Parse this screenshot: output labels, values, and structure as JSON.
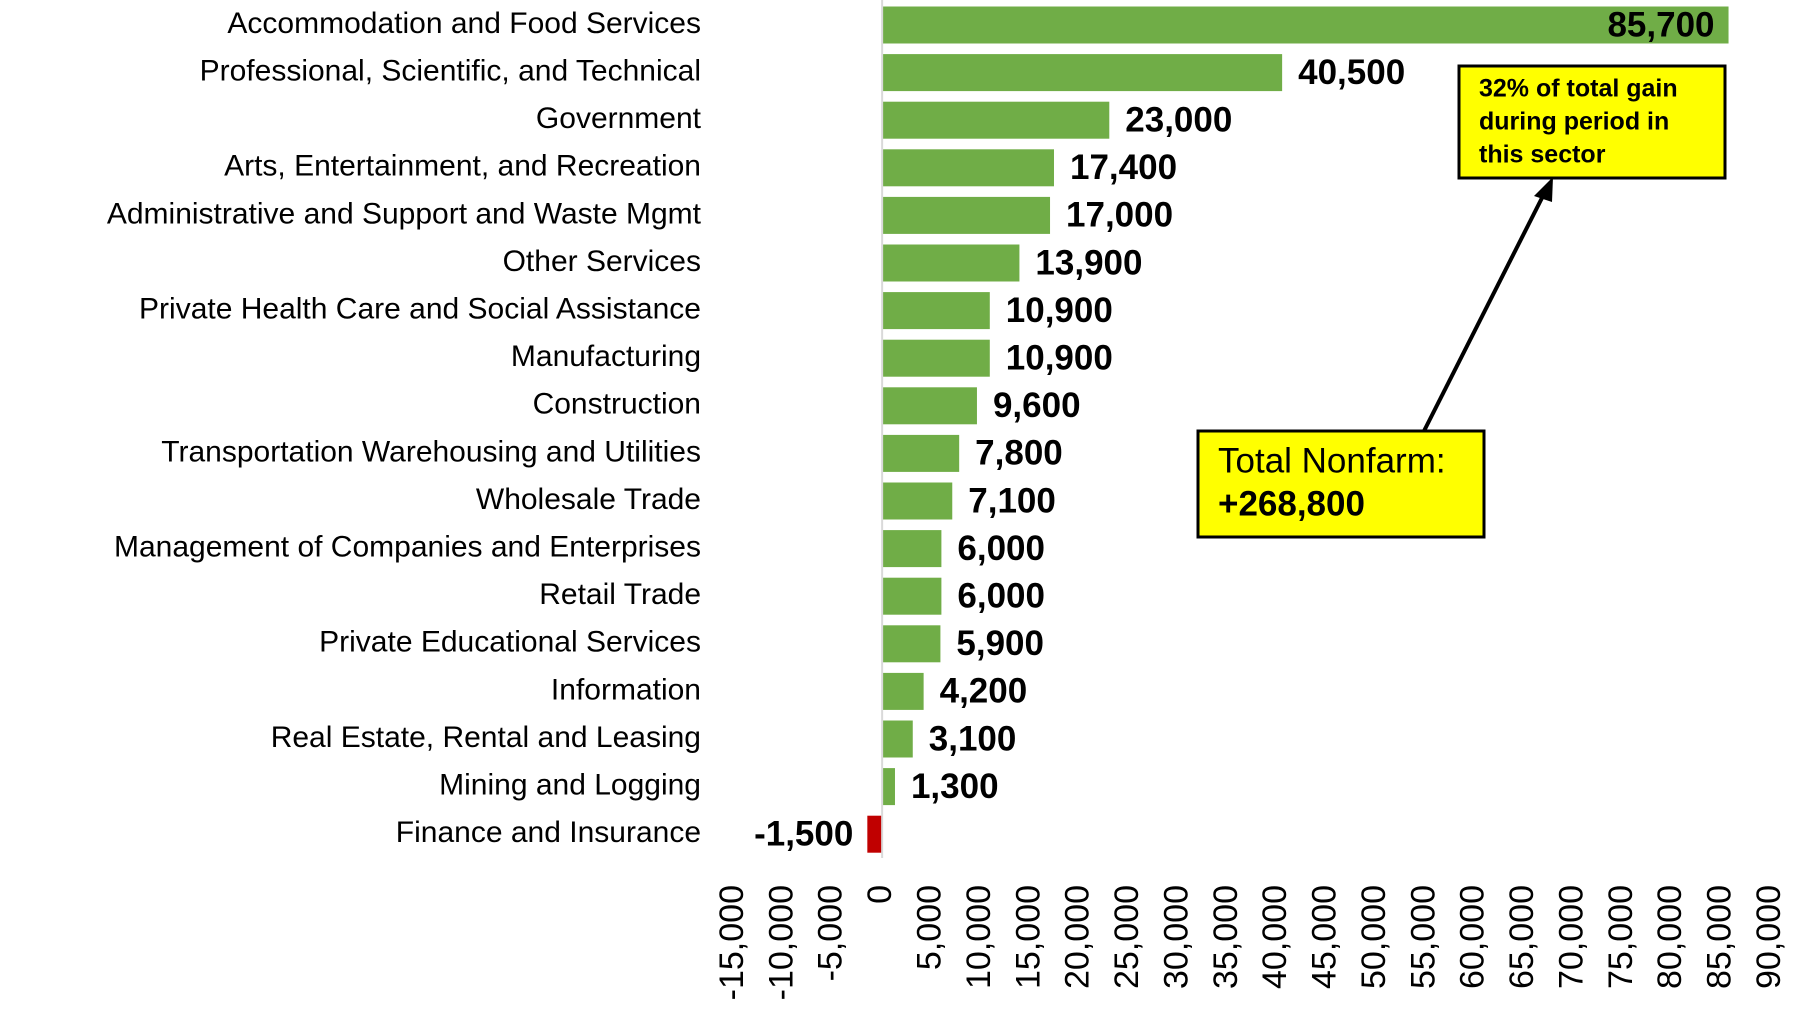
{
  "chart_data": {
    "type": "barh",
    "categories": [
      "Accommodation and Food Services",
      "Professional, Scientific, and Technical",
      "Government",
      "Arts, Entertainment, and Recreation",
      "Administrative and Support and Waste Mgmt",
      "Other Services",
      "Private Health Care and Social Assistance",
      "Manufacturing",
      "Construction",
      "Transportation Warehousing and Utilities",
      "Wholesale Trade",
      "Management of Companies and Enterprises",
      "Retail Trade",
      "Private Educational Services",
      "Information",
      "Real Estate, Rental and Leasing",
      "Mining and Logging",
      "Finance and Insurance"
    ],
    "values": [
      85700,
      40500,
      23000,
      17400,
      17000,
      13900,
      10900,
      10900,
      9600,
      7800,
      7100,
      6000,
      6000,
      5900,
      4200,
      3100,
      1300,
      -1500
    ],
    "value_labels": [
      "85,700",
      "40,500",
      "23,000",
      "17,400",
      "17,000",
      "13,900",
      "10,900",
      "10,900",
      "9,600",
      "7,800",
      "7,100",
      "6,000",
      "6,000",
      "5,900",
      "4,200",
      "3,100",
      "1,300",
      "-1,500"
    ],
    "colors": [
      "#70ad47",
      "#70ad47",
      "#70ad47",
      "#70ad47",
      "#70ad47",
      "#70ad47",
      "#70ad47",
      "#70ad47",
      "#70ad47",
      "#70ad47",
      "#70ad47",
      "#70ad47",
      "#70ad47",
      "#70ad47",
      "#70ad47",
      "#70ad47",
      "#70ad47",
      "#c00000"
    ],
    "xlim": [
      -15000,
      90000
    ],
    "xticks": [
      {
        "value": -15000,
        "label": "-15,000"
      },
      {
        "value": -10000,
        "label": "-10,000"
      },
      {
        "value": -5000,
        "label": "-5,000"
      },
      0,
      {
        "value": 5000,
        "label": "5,000"
      },
      {
        "value": 10000,
        "label": "10,000"
      },
      {
        "value": 15000,
        "label": "15,000"
      },
      {
        "value": 20000,
        "label": "20,000"
      },
      {
        "value": 25000,
        "label": "25,000"
      },
      {
        "value": 30000,
        "label": "30,000"
      },
      {
        "value": 35000,
        "label": "35,000"
      },
      {
        "value": 40000,
        "label": "40,000"
      },
      {
        "value": 45000,
        "label": "45,000"
      },
      {
        "value": 50000,
        "label": "50,000"
      },
      {
        "value": 55000,
        "label": "55,000"
      },
      {
        "value": 60000,
        "label": "60,000"
      },
      {
        "value": 65000,
        "label": "65,000"
      },
      {
        "value": 70000,
        "label": "70,000"
      },
      {
        "value": 75000,
        "label": "75,000"
      },
      {
        "value": 80000,
        "label": "80,000"
      },
      {
        "value": 85000,
        "label": "85,000"
      },
      {
        "value": 90000,
        "label": "90,000"
      }
    ],
    "annotations": [
      {
        "lines": [
          "32% of total gain",
          "during period in",
          "this sector"
        ]
      },
      {
        "lines": [
          "Total Nonfarm:",
          "+268,800"
        ]
      }
    ]
  }
}
